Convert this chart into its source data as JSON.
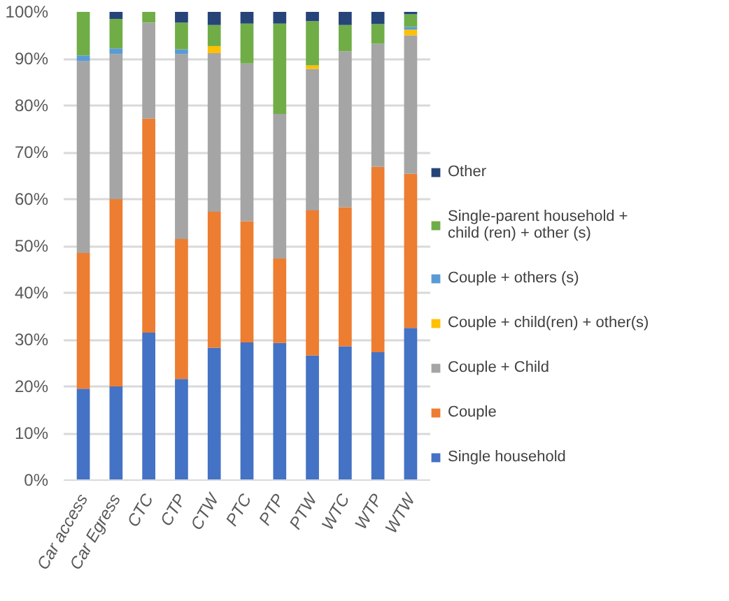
{
  "chart_data": {
    "type": "bar",
    "stacked": true,
    "categories": [
      "Car access",
      "Car Egress",
      "CTC",
      "CTP",
      "CTW",
      "PTC",
      "PTP",
      "PTW",
      "WTC",
      "WTP",
      "WTW"
    ],
    "series": [
      {
        "name": "Single household",
        "color": "#4472c4",
        "values": [
          19.5,
          20,
          31.5,
          21.6,
          28.3,
          29.4,
          29.3,
          26.6,
          28.6,
          27.3,
          32.5
        ]
      },
      {
        "name": "Couple",
        "color": "#ed7d31",
        "values": [
          29,
          40,
          45.7,
          29.9,
          29,
          25.9,
          18,
          31,
          29.7,
          39.6,
          32.9
        ]
      },
      {
        "name": "Couple + Child",
        "color": "#a5a5a5",
        "values": [
          41,
          31,
          20.5,
          39.5,
          33.9,
          33.7,
          30.9,
          30.2,
          33.3,
          26.3,
          29.6
        ]
      },
      {
        "name": "Couple + child(ren) + other(s)",
        "color": "#ffc000",
        "values": [
          0,
          0,
          0,
          0,
          1.5,
          0,
          0,
          0.8,
          0,
          0,
          1.2
        ]
      },
      {
        "name": "Couple + others (s)",
        "color": "#5b9bd5",
        "values": [
          1.2,
          1.2,
          0,
          1,
          0,
          0,
          0,
          0,
          0,
          0,
          0.6
        ]
      },
      {
        "name": "Single-parent household + child (ren) + other (s)",
        "color": "#70ad47",
        "values": [
          9.3,
          6.3,
          2.3,
          5.7,
          4.5,
          8.5,
          19.3,
          9.4,
          5.6,
          4.2,
          2.7
        ]
      },
      {
        "name": "Other",
        "color": "#264478",
        "values": [
          0,
          1.5,
          0,
          2.3,
          2.8,
          2.5,
          2.5,
          2,
          2.8,
          2.6,
          0.5
        ]
      }
    ],
    "ylim": [
      0,
      100
    ],
    "yticks": [
      {
        "value": 0,
        "label": "0%"
      },
      {
        "value": 10,
        "label": "10%"
      },
      {
        "value": 20,
        "label": "20%"
      },
      {
        "value": 30,
        "label": "30%"
      },
      {
        "value": 40,
        "label": "40%"
      },
      {
        "value": 50,
        "label": "50%"
      },
      {
        "value": 60,
        "label": "60%"
      },
      {
        "value": 70,
        "label": "70%"
      },
      {
        "value": 80,
        "label": "80%"
      },
      {
        "value": 90,
        "label": "90%"
      },
      {
        "value": 100,
        "label": "100%"
      }
    ],
    "grid": "y",
    "legend": "right"
  }
}
